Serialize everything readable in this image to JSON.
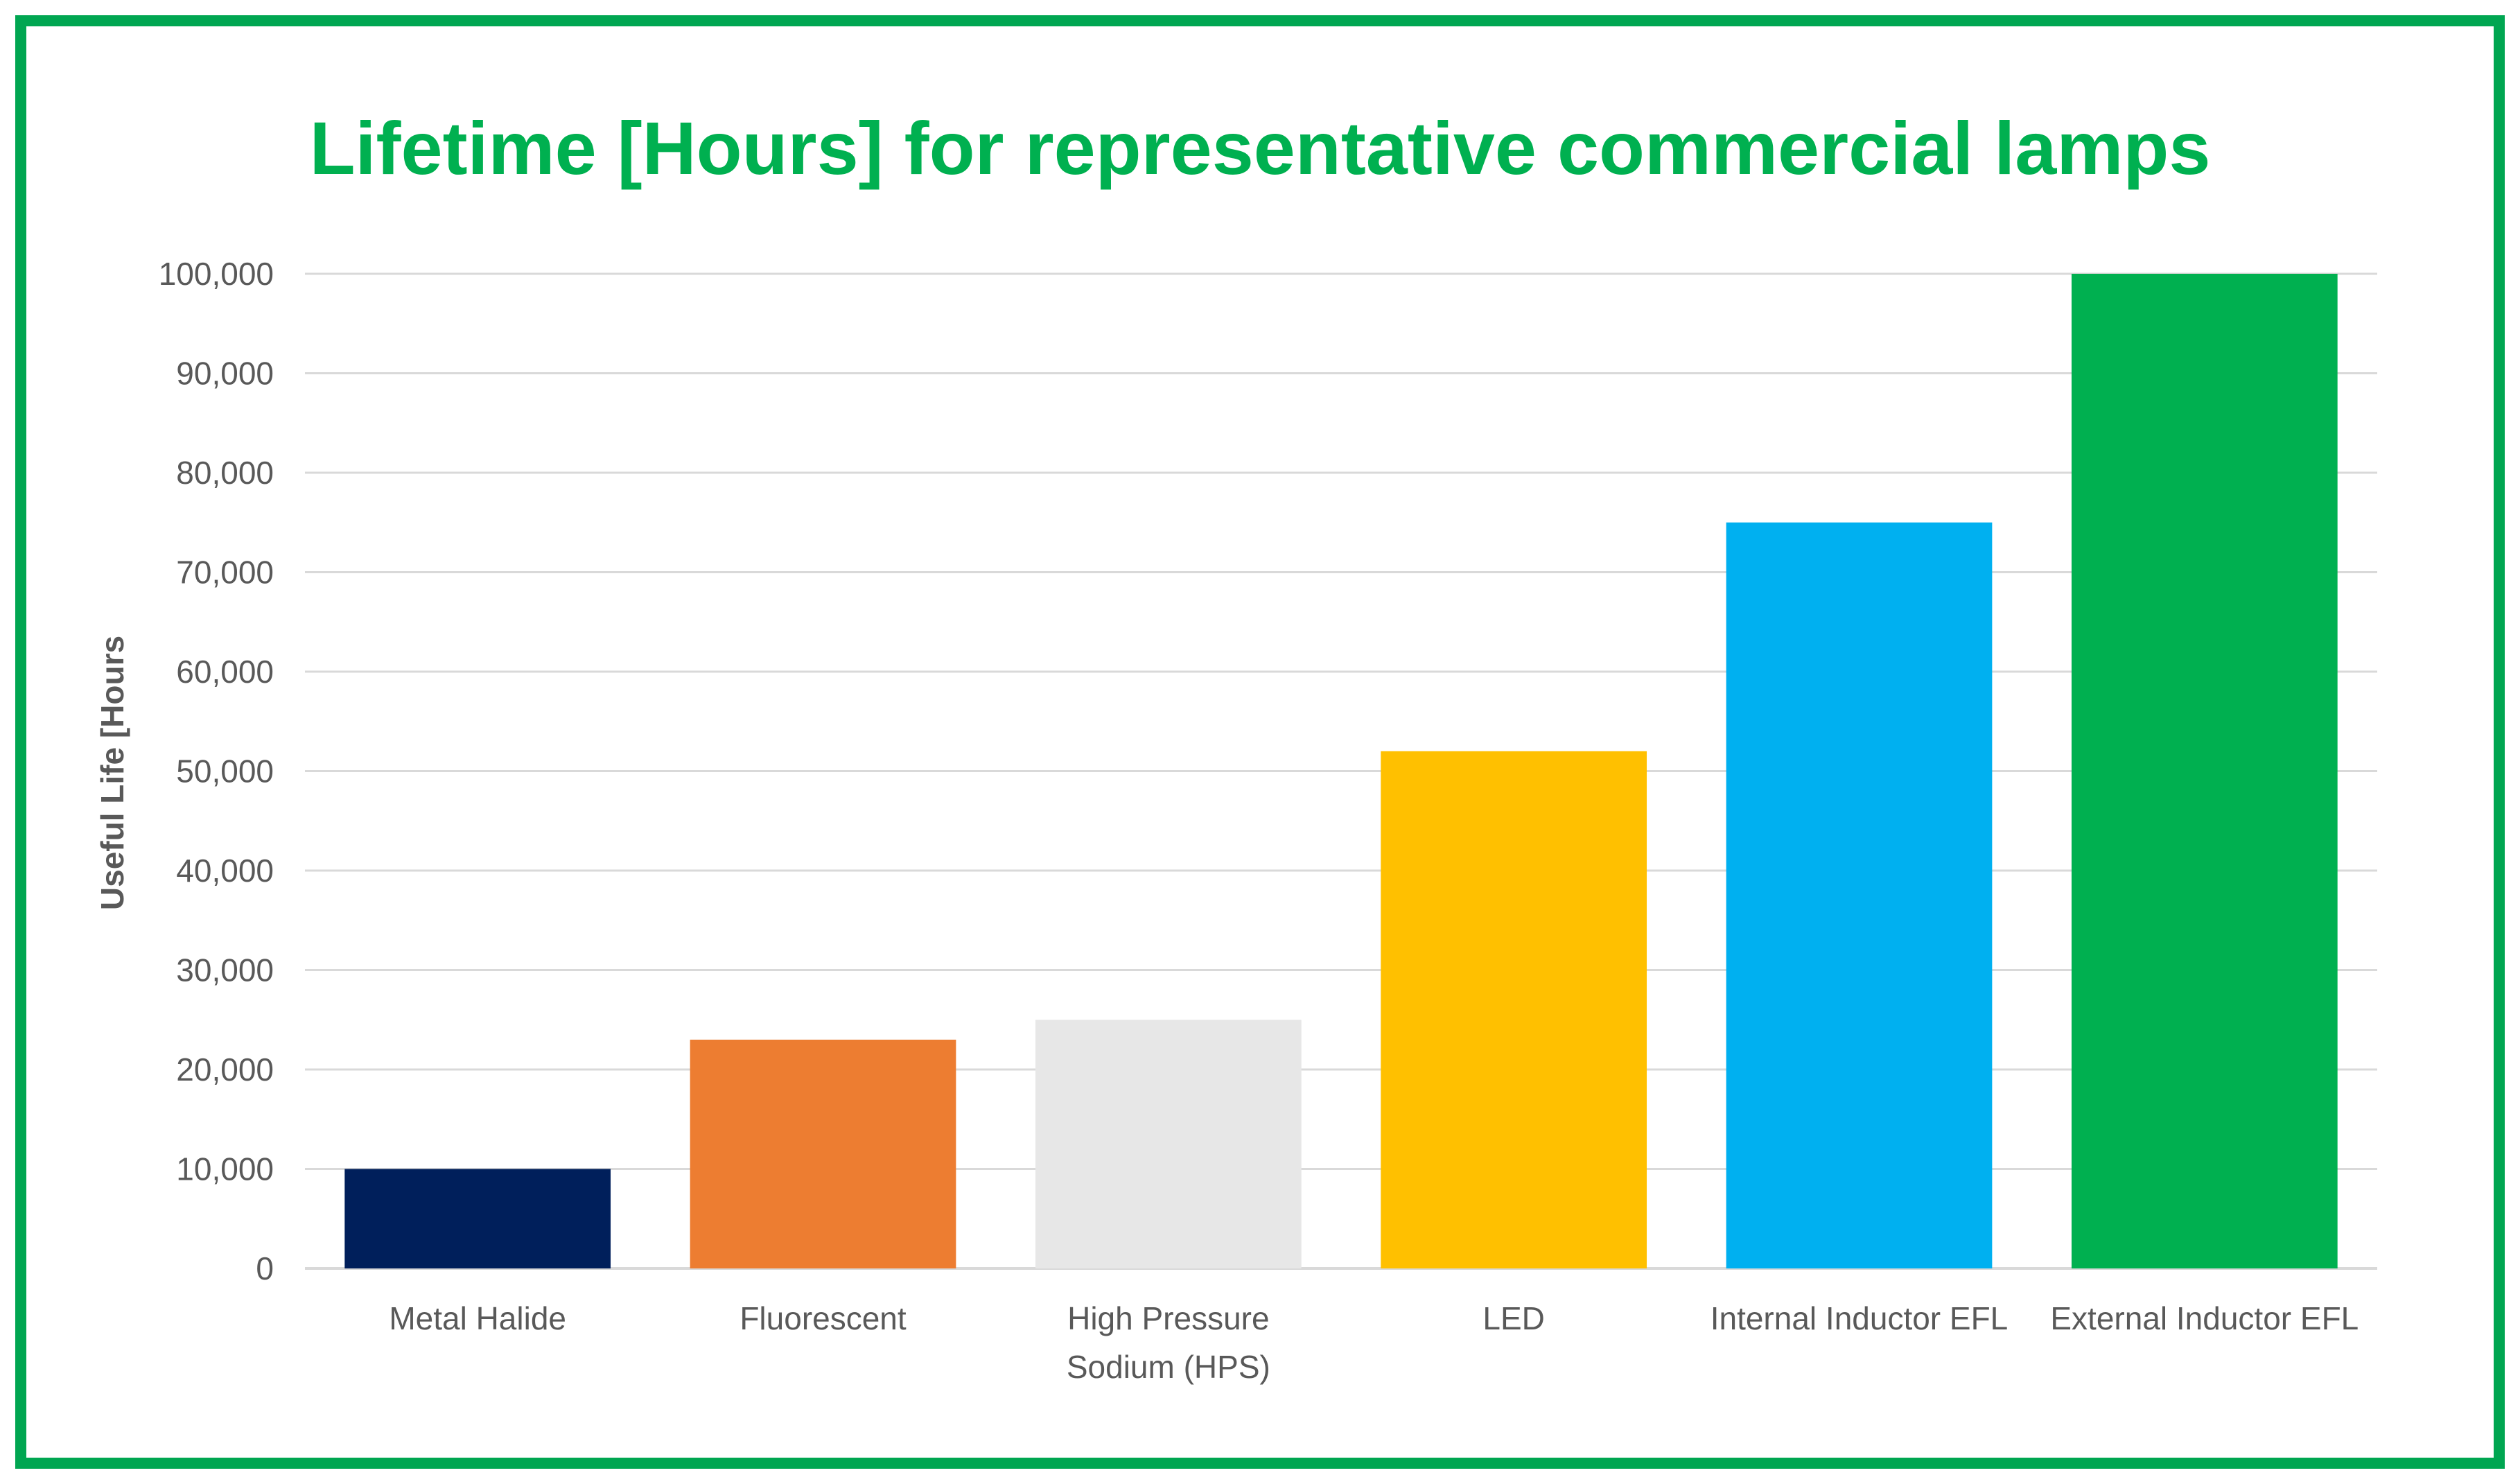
{
  "chart_data": {
    "type": "bar",
    "title": "Lifetime [Hours] for representative commercial lamps",
    "xlabel": "",
    "ylabel": "Useful Life [Hours",
    "ylim": [
      0,
      100000
    ],
    "yticks": [
      0,
      10000,
      20000,
      30000,
      40000,
      50000,
      60000,
      70000,
      80000,
      90000,
      100000
    ],
    "ytick_labels": [
      "0",
      "10,000",
      "20,000",
      "30,000",
      "40,000",
      "50,000",
      "60,000",
      "70,000",
      "80,000",
      "90,000",
      "100,000"
    ],
    "grid": true,
    "legend": "none",
    "categories": [
      [
        "Metal Halide"
      ],
      [
        "Fluorescent"
      ],
      [
        "High Pressure",
        "Sodium (HPS)"
      ],
      [
        "LED"
      ],
      [
        "Internal Inductor EFL"
      ],
      [
        "External Inductor EFL"
      ]
    ],
    "values": [
      10000,
      23000,
      25000,
      52000,
      75000,
      100000
    ],
    "colors": [
      "#001f5b",
      "#ed7d31",
      "#e7e7e7",
      "#ffc000",
      "#00b0f0",
      "#00b050"
    ]
  },
  "style": {
    "border_color": "#00a651",
    "title_color": "#00b050",
    "text_color": "#595959",
    "grid_color": "#d9d9d9"
  }
}
